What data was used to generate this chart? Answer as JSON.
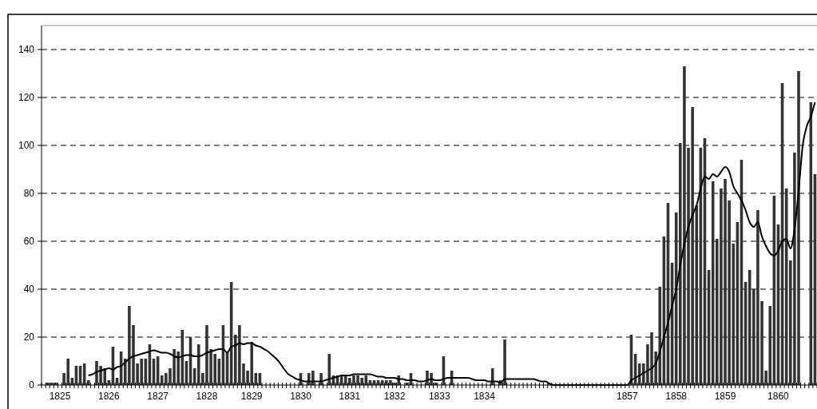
{
  "chart_data": {
    "type": "bar",
    "categories": [
      null,
      null,
      null,
      null,
      "1825",
      null,
      null,
      null,
      null,
      null,
      null,
      null,
      null,
      null,
      null,
      null,
      "1826",
      null,
      null,
      null,
      null,
      null,
      null,
      null,
      null,
      null,
      null,
      null,
      "1827",
      null,
      null,
      null,
      null,
      null,
      null,
      null,
      null,
      null,
      null,
      null,
      "1828",
      null,
      null,
      null,
      null,
      null,
      null,
      null,
      null,
      null,
      null,
      "1829",
      null,
      null,
      null,
      null,
      null,
      null,
      null,
      null,
      null,
      null,
      null,
      "1830",
      null,
      null,
      null,
      null,
      null,
      null,
      null,
      null,
      null,
      null,
      null,
      "1831",
      null,
      null,
      null,
      null,
      null,
      null,
      null,
      null,
      null,
      null,
      "1832",
      null,
      null,
      null,
      null,
      null,
      null,
      null,
      null,
      null,
      null,
      "1833",
      null,
      null,
      null,
      null,
      null,
      null,
      null,
      null,
      null,
      null,
      "1834",
      null,
      null,
      null,
      null,
      null,
      null,
      null,
      null,
      null,
      null,
      null,
      null,
      null,
      null,
      null,
      null,
      null,
      null,
      null,
      null,
      null,
      null,
      null,
      null,
      null,
      null,
      null,
      null,
      null,
      null,
      null,
      null,
      null,
      null,
      "1857",
      null,
      null,
      null,
      null,
      null,
      null,
      null,
      null,
      null,
      null,
      null,
      "1858",
      null,
      null,
      null,
      null,
      null,
      null,
      null,
      null,
      null,
      null,
      null,
      "1859",
      null,
      null,
      null,
      null,
      null,
      null,
      null,
      null,
      null,
      null,
      null,
      null,
      "1860",
      null,
      null,
      null,
      null,
      null,
      null,
      null,
      null,
      null
    ],
    "series": [
      {
        "color": "#333333",
        "values": [
          0,
          1,
          1,
          1,
          0,
          5,
          11,
          3,
          8,
          8,
          9,
          2,
          0,
          10,
          8,
          7,
          2,
          16,
          3,
          14,
          11,
          33,
          25,
          9,
          11,
          11,
          17,
          11,
          12,
          4,
          5,
          7,
          15,
          14,
          23,
          10,
          20,
          7,
          17,
          5,
          25,
          15,
          13,
          11,
          25,
          14,
          43,
          21,
          25,
          9,
          6,
          18,
          5,
          5,
          0,
          0,
          0,
          0,
          0,
          0,
          0,
          0,
          0,
          5,
          0,
          5,
          6,
          0,
          5,
          0,
          13,
          4,
          4,
          4,
          4,
          3,
          4,
          4,
          3,
          4,
          2,
          2,
          2,
          2,
          2,
          2,
          1,
          4,
          0,
          1,
          5,
          0,
          0,
          0,
          6,
          5,
          1,
          0,
          12,
          0,
          6,
          0,
          0,
          0,
          0,
          0,
          0,
          0,
          0,
          0,
          7,
          0,
          2,
          19,
          0,
          0,
          0,
          0,
          0,
          0,
          0,
          0,
          0,
          0,
          0,
          0,
          0,
          0,
          0,
          0,
          0,
          0,
          0,
          0,
          0,
          0,
          0,
          0,
          0,
          0,
          0,
          0,
          0,
          0,
          21,
          13,
          9,
          9,
          17,
          22,
          14,
          41,
          62,
          76,
          51,
          72,
          101,
          133,
          99,
          116,
          75,
          99,
          103,
          48,
          85,
          61,
          82,
          86,
          77,
          59,
          68,
          94,
          43,
          48,
          40,
          73,
          35,
          6,
          33,
          79,
          67,
          126,
          82,
          52,
          97,
          131,
          null,
          null,
          118,
          88
        ]
      },
      {
        "type": "line",
        "color": "#000000",
        "values": [
          null,
          null,
          null,
          null,
          null,
          null,
          null,
          null,
          null,
          null,
          null,
          4,
          4.5,
          5.5,
          6,
          6.5,
          7,
          6.5,
          7.5,
          8,
          9.5,
          11,
          12,
          12.5,
          13,
          13.5,
          14,
          14.5,
          14,
          13.5,
          13.5,
          13,
          12,
          11.5,
          12,
          12.5,
          12.5,
          12,
          12,
          12.5,
          13.5,
          14,
          14.5,
          15,
          15,
          13.5,
          16,
          16.5,
          17.5,
          17,
          17.5,
          17.5,
          16.5,
          16,
          15,
          14,
          12.5,
          11,
          9,
          6.5,
          4.5,
          3.5,
          2.5,
          2,
          1.5,
          1.5,
          1.5,
          1.5,
          1.5,
          2,
          2.5,
          3,
          3.5,
          4,
          4,
          4,
          4.5,
          4.5,
          4.5,
          4.5,
          4.5,
          4,
          3.5,
          3.5,
          3,
          3,
          3,
          2.5,
          2.5,
          2,
          2,
          2,
          1.5,
          1.5,
          2,
          2.5,
          2,
          2,
          2.5,
          3,
          3,
          3,
          3,
          3,
          3,
          2.5,
          2,
          2,
          2,
          1.5,
          1.5,
          1.5,
          1,
          2.5,
          2.5,
          2.5,
          2.5,
          2.5,
          2.5,
          2.5,
          2.5,
          2,
          1.5,
          1.5,
          0.5,
          0,
          0,
          0,
          0,
          0,
          0,
          0,
          0,
          0,
          0,
          0,
          0,
          0,
          0,
          0,
          0,
          0,
          0,
          0,
          2,
          3,
          4,
          5,
          6,
          7,
          9,
          14,
          20,
          26,
          33,
          40,
          50,
          59,
          66,
          71,
          75,
          82,
          87,
          86,
          88,
          87,
          89,
          91,
          89,
          83,
          80,
          77,
          73,
          68,
          66,
          68,
          62,
          58,
          55,
          54,
          56,
          60,
          61,
          57,
          65,
          81,
          100,
          108,
          112,
          118
        ]
      }
    ],
    "ylim": [
      0,
      150
    ],
    "yticks": [
      0,
      20,
      40,
      60,
      80,
      100,
      120,
      140
    ],
    "grid": "y"
  }
}
